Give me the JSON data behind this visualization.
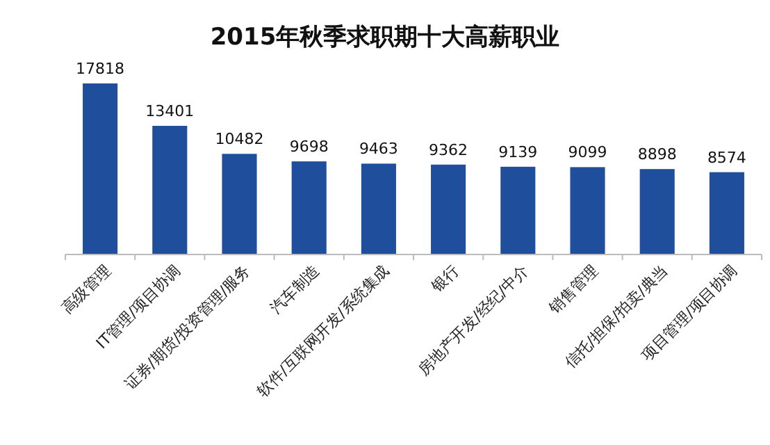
{
  "chart_data": {
    "type": "bar",
    "title": "2015年秋季求职期十大高薪职业",
    "categories": [
      "高级管理",
      "IT管理/项目协调",
      "证券/期货/投资管理/服务",
      "汽车制造",
      "软件/互联网开发/系统集成",
      "银行",
      "房地产开发/经纪/中介",
      "销售管理",
      "信托/担保/拍卖/典当",
      "项目管理/项目协调"
    ],
    "values": [
      17818,
      13401,
      10482,
      9698,
      9463,
      9362,
      9139,
      9099,
      8898,
      8574
    ],
    "color": "#1f4e9c",
    "data_labels": true
  }
}
